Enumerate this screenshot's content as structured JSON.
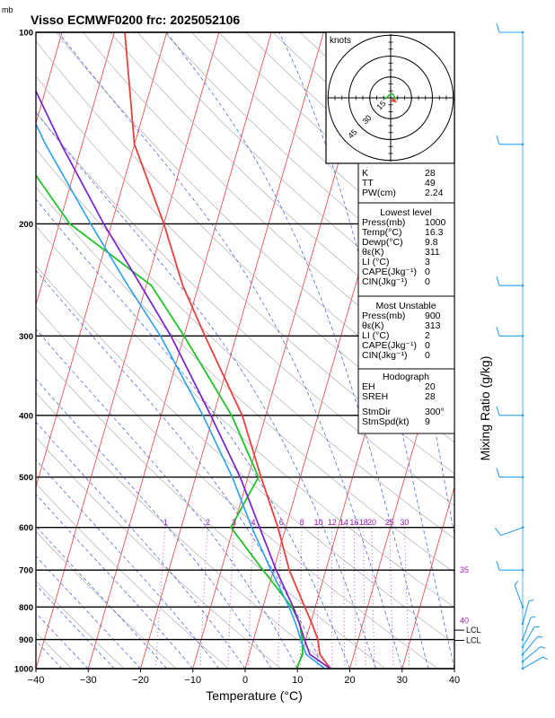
{
  "header": {
    "unit": "mb",
    "title": "Visso ECMWF0200  frc: 2025052106"
  },
  "chart_data": {
    "type": "line",
    "title": "Visso ECMWF0200  frc: 2025052106",
    "xlabel": "Temperature (°C)",
    "ylabel": "Mixing Ratio (g/kg)",
    "y_unit_label": "mb",
    "xlim": [
      -40,
      40
    ],
    "ylim": [
      1000,
      100
    ],
    "x_ticks": [
      "−40",
      "−30",
      "−20",
      "−10",
      "0",
      "10",
      "20",
      "30",
      "40"
    ],
    "pressure_ticks": [
      "100",
      "200",
      "300",
      "400",
      "500",
      "600",
      "700",
      "800",
      "900",
      "1000"
    ],
    "mixing_ratio_labels": [
      "1",
      "2",
      "3",
      "4",
      "6",
      "8",
      "10",
      "12",
      "14",
      "16",
      "18",
      "20",
      "25",
      "30"
    ],
    "right_edge_labels": [
      "35",
      "40",
      "LCL",
      "LCL"
    ],
    "grid": true,
    "series": [
      {
        "key": "temperature",
        "color": "#e8403c",
        "points": [
          [
            1000,
            16.3
          ],
          [
            950,
            13.5
          ],
          [
            900,
            12.3
          ],
          [
            850,
            10.3
          ],
          [
            800,
            8.0
          ],
          [
            700,
            3.0
          ],
          [
            600,
            -1.5
          ],
          [
            500,
            -7.5
          ],
          [
            400,
            -14.5
          ],
          [
            300,
            -26.0
          ],
          [
            250,
            -33.0
          ],
          [
            200,
            -40.0
          ],
          [
            150,
            -50.0
          ],
          [
            100,
            -58.0
          ]
        ]
      },
      {
        "key": "dewpoint",
        "color": "#1fc42b",
        "points": [
          [
            1000,
            9.8
          ],
          [
            950,
            10.2
          ],
          [
            900,
            9.3
          ],
          [
            850,
            8.0
          ],
          [
            800,
            5.5
          ],
          [
            700,
            -2.0
          ],
          [
            600,
            -10.5
          ],
          [
            500,
            -8.0
          ],
          [
            400,
            -16.5
          ],
          [
            300,
            -30.0
          ],
          [
            250,
            -39.0
          ],
          [
            200,
            -58.0
          ],
          [
            150,
            -73.0
          ],
          [
            100,
            -86.0
          ]
        ]
      },
      {
        "key": "parcel",
        "color": "#7a1fcf",
        "points": [
          [
            1000,
            16.3
          ],
          [
            950,
            11.6
          ],
          [
            910,
            10.1
          ],
          [
            850,
            7.9
          ],
          [
            800,
            5.8
          ],
          [
            700,
            0.5
          ],
          [
            600,
            -5.0
          ],
          [
            500,
            -11.5
          ],
          [
            400,
            -20.5
          ],
          [
            300,
            -32.5
          ],
          [
            250,
            -41.0
          ],
          [
            200,
            -51.5
          ],
          [
            150,
            -64.0
          ],
          [
            120,
            -73.0
          ]
        ]
      },
      {
        "key": "virtual",
        "color": "#2aa0f0",
        "points": [
          [
            1000,
            15.2
          ],
          [
            950,
            10.9
          ],
          [
            910,
            9.4
          ],
          [
            850,
            7.2
          ],
          [
            800,
            5.0
          ],
          [
            700,
            -0.5
          ],
          [
            600,
            -6.5
          ],
          [
            500,
            -13.0
          ],
          [
            400,
            -22.0
          ],
          [
            300,
            -34.5
          ],
          [
            250,
            -43.5
          ],
          [
            200,
            -54.0
          ],
          [
            150,
            -67.0
          ],
          [
            120,
            -76.0
          ]
        ]
      }
    ],
    "wind_barbs": [
      {
        "p": 1000,
        "dir": 60,
        "kt": 5
      },
      {
        "p": 975,
        "dir": 50,
        "kt": 5
      },
      {
        "p": 950,
        "dir": 40,
        "kt": 5
      },
      {
        "p": 925,
        "dir": 30,
        "kt": 5
      },
      {
        "p": 900,
        "dir": 20,
        "kt": 5
      },
      {
        "p": 850,
        "dir": 15,
        "kt": 5
      },
      {
        "p": 800,
        "dir": 340,
        "kt": 5
      },
      {
        "p": 700,
        "dir": 270,
        "kt": 10
      },
      {
        "p": 600,
        "dir": 250,
        "kt": 10
      },
      {
        "p": 500,
        "dir": 270,
        "kt": 10
      },
      {
        "p": 400,
        "dir": 270,
        "kt": 10
      },
      {
        "p": 300,
        "dir": 270,
        "kt": 10
      },
      {
        "p": 250,
        "dir": 270,
        "kt": 10
      },
      {
        "p": 150,
        "dir": 270,
        "kt": 10
      },
      {
        "p": 100,
        "dir": 270,
        "kt": 10
      }
    ],
    "hodograph": {
      "unit_label": "knots",
      "ring_labels": [
        "15",
        "30",
        "45"
      ],
      "hodo_points": [
        [
          -4,
          -1
        ],
        [
          -1,
          2
        ],
        [
          1,
          3
        ],
        [
          2,
          2
        ],
        [
          3,
          0
        ],
        [
          4,
          -1
        ]
      ],
      "storm_motion_arrow": [
        4,
        -3
      ]
    }
  },
  "indices": {
    "top": [
      {
        "label": "K",
        "value": "28"
      },
      {
        "label": "TT",
        "value": "49"
      },
      {
        "label": "PW(cm)",
        "value": "2.24"
      }
    ],
    "lowest_title": "Lowest level",
    "lowest": [
      {
        "label": "Press(mb)",
        "value": "1000"
      },
      {
        "label": "Temp(°C)",
        "value": "16.3"
      },
      {
        "label": "Dewp(°C)",
        "value": "9.8"
      },
      {
        "label": "θε(K)",
        "value": "311"
      },
      {
        "label": "LI (°C)",
        "value": "3"
      },
      {
        "label": "CAPE(Jkg⁻¹)",
        "value": "0"
      },
      {
        "label": "CIN(Jkg⁻¹)",
        "value": "0"
      }
    ],
    "unstable_title": "Most Unstable",
    "unstable": [
      {
        "label": "Press(mb)",
        "value": "900"
      },
      {
        "label": "θε(K)",
        "value": "313"
      },
      {
        "label": "LI (°C)",
        "value": "2"
      },
      {
        "label": "CAPE(Jkg⁻¹)",
        "value": "0"
      },
      {
        "label": "CIN(Jkg⁻¹)",
        "value": "0"
      }
    ],
    "hodo_title": "Hodograph",
    "hodo": [
      {
        "label": "EH",
        "value": "20"
      },
      {
        "label": "SREH",
        "value": "28"
      },
      {
        "label": "StmDir",
        "value": "300°"
      },
      {
        "label": "StmSpd(kt)",
        "value": "9"
      }
    ]
  }
}
